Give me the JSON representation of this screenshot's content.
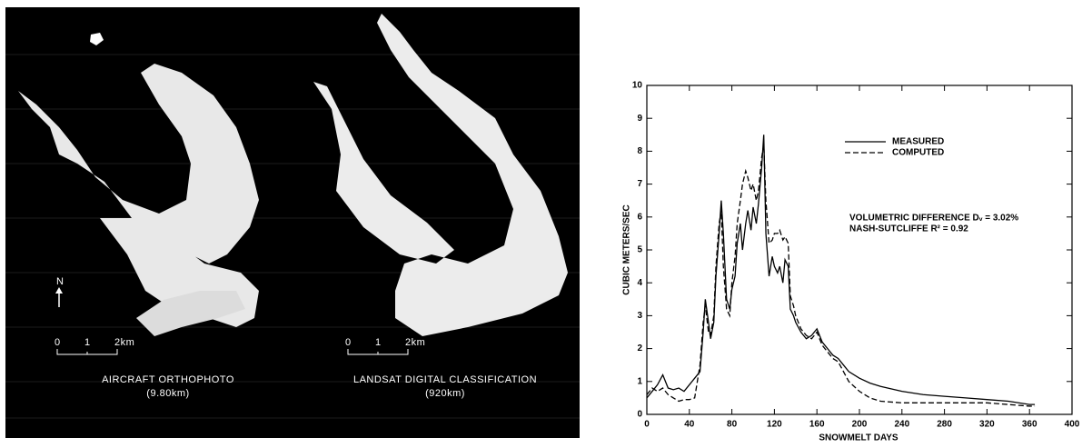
{
  "maps": {
    "north": "N",
    "left": {
      "scale": [
        "0",
        "1",
        "2km"
      ],
      "title": "AIRCRAFT ORTHOPHOTO",
      "subtitle": "(9.80km)"
    },
    "right": {
      "scale": [
        "0",
        "1",
        "2km"
      ],
      "title": "LANDSAT DIGITAL CLASSIFICATION",
      "subtitle": "(920km)"
    }
  },
  "chart_data": {
    "type": "line",
    "x_label": "SNOWMELT DAYS",
    "y_label": "CUBIC METERS/SEC",
    "annotations": [
      "VOLUMETRIC DIFFERENCE Dᵥ = 3.02%",
      "NASH-SUTCLIFFE R² = 0.92"
    ],
    "x": [
      0,
      5,
      10,
      15,
      20,
      25,
      30,
      35,
      40,
      45,
      50,
      53,
      55,
      58,
      60,
      63,
      65,
      68,
      70,
      72,
      75,
      78,
      80,
      83,
      85,
      88,
      90,
      93,
      95,
      98,
      100,
      103,
      105,
      108,
      110,
      112,
      115,
      118,
      120,
      123,
      125,
      128,
      130,
      133,
      135,
      138,
      140,
      145,
      150,
      155,
      160,
      165,
      170,
      175,
      180,
      185,
      190,
      200,
      210,
      220,
      240,
      260,
      280,
      300,
      320,
      340,
      360,
      365
    ],
    "series": [
      {
        "name": "MEASURED",
        "color": "#000000",
        "dash": "none",
        "values": [
          0.5,
          0.7,
          0.9,
          1.2,
          0.8,
          0.75,
          0.8,
          0.7,
          0.9,
          1.1,
          1.3,
          2.5,
          3.5,
          2.8,
          2.3,
          2.8,
          4.2,
          5.5,
          6.5,
          5.5,
          3.5,
          3.2,
          3.8,
          4.2,
          5.2,
          5.8,
          5.0,
          5.8,
          6.2,
          5.6,
          6.3,
          5.8,
          6.4,
          7.5,
          8.5,
          5.5,
          4.2,
          4.8,
          4.5,
          4.3,
          4.5,
          4.0,
          4.7,
          4.5,
          3.2,
          3.0,
          2.8,
          2.5,
          2.3,
          2.4,
          2.6,
          2.2,
          2.0,
          1.8,
          1.7,
          1.5,
          1.3,
          1.1,
          0.95,
          0.85,
          0.7,
          0.6,
          0.55,
          0.5,
          0.45,
          0.4,
          0.3,
          0.3
        ]
      },
      {
        "name": "COMPUTED",
        "color": "#000000",
        "dash": "6 3",
        "values": [
          0.6,
          0.8,
          0.7,
          0.8,
          0.6,
          0.5,
          0.4,
          0.45,
          0.45,
          0.5,
          1.5,
          2.8,
          3.3,
          2.5,
          2.4,
          3.0,
          4.5,
          5.8,
          6.2,
          4.5,
          3.2,
          3.0,
          4.0,
          4.8,
          5.8,
          6.5,
          7.0,
          7.4,
          7.2,
          6.8,
          7.0,
          6.5,
          6.8,
          7.8,
          8.2,
          6.5,
          5.2,
          5.3,
          5.5,
          5.5,
          5.6,
          5.3,
          5.4,
          5.2,
          3.6,
          3.3,
          3.0,
          2.6,
          2.4,
          2.3,
          2.5,
          2.1,
          1.9,
          1.7,
          1.6,
          1.3,
          1.0,
          0.7,
          0.5,
          0.4,
          0.35,
          0.35,
          0.35,
          0.35,
          0.35,
          0.3,
          0.25,
          0.25
        ]
      }
    ],
    "xlim": [
      0,
      400
    ],
    "ylim": [
      0,
      10
    ],
    "xticks": [
      0,
      40,
      80,
      120,
      160,
      200,
      240,
      280,
      320,
      360,
      400
    ],
    "yticks": [
      0,
      1,
      2,
      3,
      4,
      5,
      6,
      7,
      8,
      9,
      10
    ]
  }
}
